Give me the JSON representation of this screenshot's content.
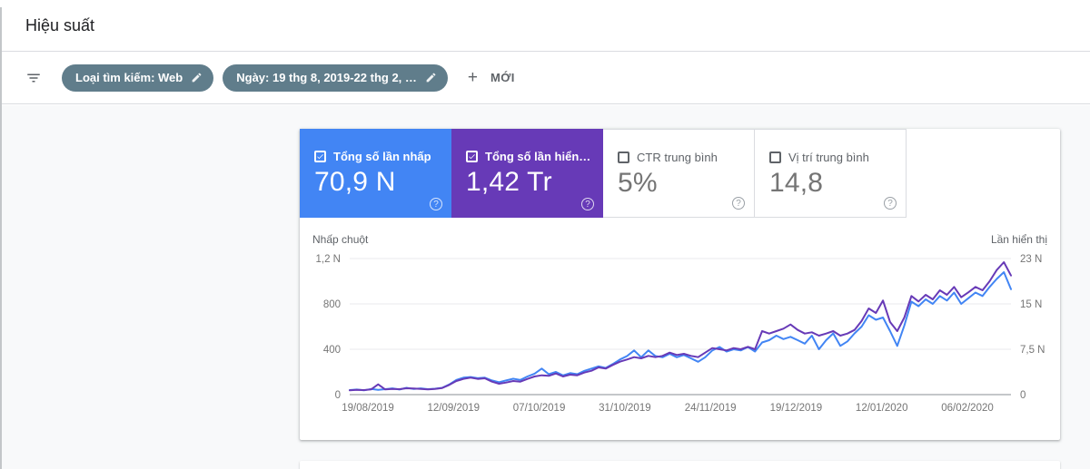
{
  "header": {
    "title": "Hiệu suất"
  },
  "filters": {
    "chips": [
      {
        "label": "Loại tìm kiếm: Web",
        "icon": "pencil-icon"
      },
      {
        "label": "Ngày: 19 thg 8, 2019-22 thg 2, …",
        "icon": "pencil-icon"
      }
    ],
    "plus": "+",
    "new_button": "MỚI"
  },
  "metrics": [
    {
      "label": "Tổng số lần nhấp",
      "value": "70,9 N",
      "selected": true,
      "color": "#4285f4",
      "help": "?"
    },
    {
      "label": "Tổng số lần hiển…",
      "value": "1,42 Tr",
      "selected": true,
      "color": "#673ab7",
      "help": "?"
    },
    {
      "label": "CTR trung bình",
      "value": "5%",
      "selected": false,
      "color": "#ffffff",
      "help": "?"
    },
    {
      "label": "Vị trí trung bình",
      "value": "14,8",
      "selected": false,
      "color": "#ffffff",
      "help": "?"
    }
  ],
  "chart_data": {
    "type": "line",
    "title": "",
    "grid": true,
    "legend_position": "none",
    "x_range": [
      "19/08/2019",
      "22/02/2020"
    ],
    "x_tick_labels": [
      "19/08/2019",
      "12/09/2019",
      "07/10/2019",
      "31/10/2019",
      "24/11/2019",
      "19/12/2019",
      "12/01/2020",
      "06/02/2020"
    ],
    "left_axis": {
      "label": "Nhấp chuột",
      "ticks": [
        "1,2 N",
        "800",
        "400",
        "0"
      ],
      "max": 1200,
      "min": 0
    },
    "right_axis": {
      "label": "Lần hiển thị",
      "ticks": [
        "23 N",
        "15 N",
        "7,5 N",
        "0"
      ],
      "max": 22.5,
      "min": 0
    },
    "series": [
      {
        "name": "Nhấp chuột (clicks)",
        "axis": "left",
        "color": "#4285f4",
        "values": [
          40,
          45,
          38,
          50,
          42,
          48,
          55,
          45,
          60,
          50,
          55,
          48,
          52,
          60,
          90,
          130,
          150,
          155,
          145,
          150,
          125,
          110,
          125,
          140,
          130,
          160,
          185,
          230,
          180,
          200,
          170,
          190,
          180,
          210,
          230,
          250,
          235,
          270,
          310,
          340,
          390,
          330,
          390,
          340,
          330,
          360,
          330,
          350,
          320,
          290,
          330,
          390,
          420,
          380,
          400,
          390,
          420,
          380,
          460,
          480,
          520,
          490,
          510,
          480,
          450,
          520,
          400,
          480,
          540,
          430,
          470,
          540,
          600,
          700,
          660,
          680,
          560,
          430,
          610,
          820,
          780,
          840,
          800,
          870,
          830,
          900,
          800,
          850,
          900,
          870,
          950,
          1020,
          1080,
          930
        ]
      },
      {
        "name": "Lần hiển thị (impressions, nghìn)",
        "axis": "right",
        "color": "#673ab7",
        "values": [
          0.7,
          0.8,
          0.75,
          0.85,
          1.7,
          0.85,
          0.95,
          0.9,
          1.05,
          1.0,
          0.95,
          0.85,
          0.95,
          1.1,
          1.6,
          2.25,
          2.6,
          2.8,
          2.6,
          2.7,
          2.15,
          1.8,
          2.0,
          2.25,
          2.15,
          2.6,
          3.0,
          3.2,
          3.1,
          3.5,
          3.0,
          3.3,
          3.2,
          3.65,
          3.95,
          4.5,
          4.3,
          4.9,
          5.45,
          5.8,
          6.2,
          6.0,
          6.4,
          6.2,
          6.4,
          6.95,
          6.55,
          6.75,
          6.4,
          6.2,
          6.95,
          7.7,
          7.5,
          7.3,
          7.7,
          7.5,
          7.9,
          7.5,
          10.5,
          10.1,
          10.5,
          10.9,
          11.6,
          10.7,
          10.1,
          10.3,
          9.75,
          10.1,
          10.5,
          9.75,
          10.1,
          10.7,
          12.2,
          14.25,
          13.5,
          15.55,
          12.0,
          10.5,
          12.75,
          16.3,
          15.4,
          16.5,
          15.75,
          17.25,
          16.5,
          17.8,
          16.1,
          16.9,
          17.8,
          17.25,
          18.75,
          20.6,
          21.9,
          19.7
        ]
      }
    ]
  }
}
